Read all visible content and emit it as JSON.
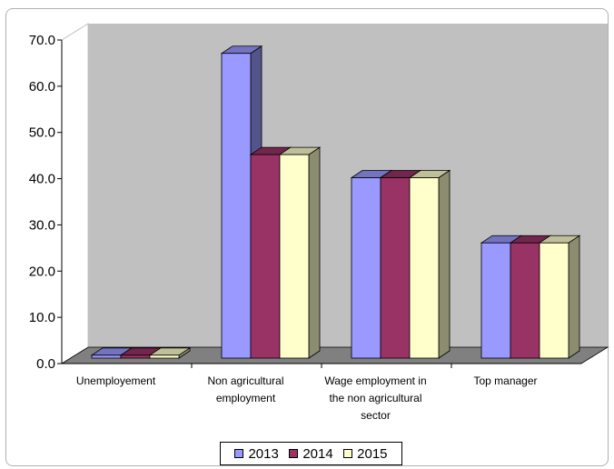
{
  "chart_data": {
    "type": "bar",
    "categories": [
      [
        "Unemployement"
      ],
      [
        "Non agricultural",
        "employment"
      ],
      [
        "Wage employment in",
        "the non agricultural",
        "sector"
      ],
      [
        "Top manager"
      ]
    ],
    "series": [
      {
        "name": "2013",
        "color": "#9999ff",
        "values": [
          2.2,
          67.5,
          40.6,
          26.5
        ]
      },
      {
        "name": "2014",
        "color": "#993366",
        "values": [
          2.2,
          45.6,
          40.6,
          26.5
        ]
      },
      {
        "name": "2015",
        "color": "#ffffcc",
        "values": [
          2.2,
          45.6,
          40.6,
          26.5
        ]
      }
    ],
    "ylim": [
      0,
      70
    ],
    "yticks": [
      "0.0",
      "10.0",
      "20.0",
      "30.0",
      "40.0",
      "50.0",
      "60.0",
      "70.0"
    ],
    "title": "",
    "xlabel": "",
    "ylabel": "",
    "grid": false,
    "legend_position": "bottom",
    "wall_color": "#c0c0c0",
    "floor_color": "#808080"
  }
}
